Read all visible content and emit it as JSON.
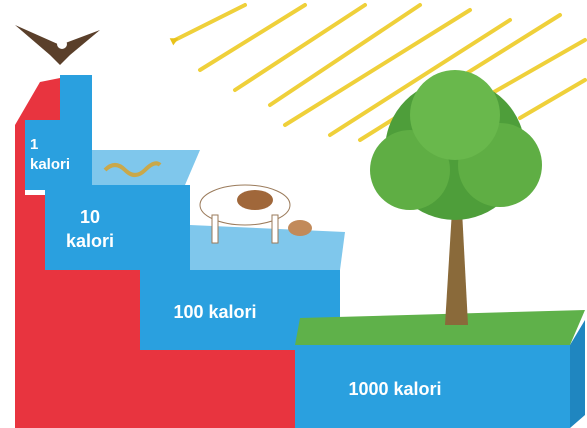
{
  "labels": [
    {
      "lines": [
        "1",
        "kalori"
      ]
    },
    {
      "lines": [
        "10",
        "kalori"
      ]
    },
    {
      "lines": [
        "100 kalori"
      ]
    },
    {
      "lines": [
        "1000 kalori"
      ]
    }
  ]
}
